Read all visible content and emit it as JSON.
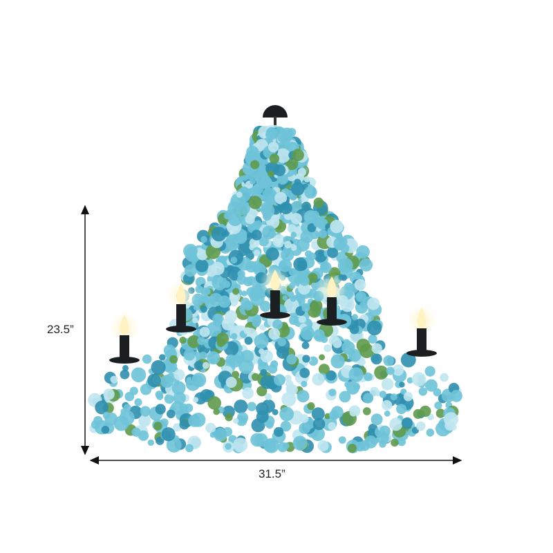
{
  "product": {
    "name": "",
    "height_label": "23.5”",
    "width_label": "31.5”"
  },
  "colors": {
    "flower_primary": "#6fc3d8",
    "flower_light": "#bfe6ef",
    "flower_dark": "#2f8fae",
    "leaf": "#5f9a4c",
    "metal": "#1c1f22",
    "bulb": "#fff3c4"
  }
}
